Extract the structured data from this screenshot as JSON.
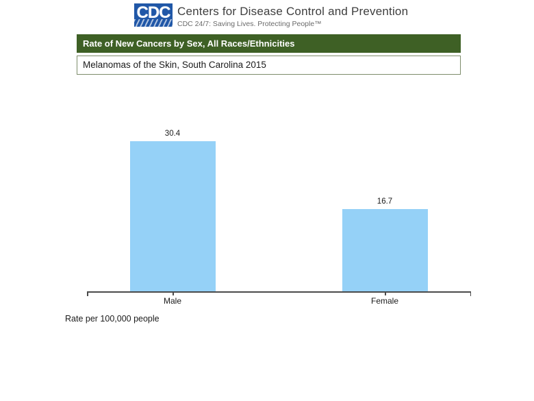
{
  "header": {
    "logo_text": "CDC",
    "org_name": "Centers for Disease Control and Prevention",
    "tagline": "CDC 24/7: Saving Lives. Protecting People™"
  },
  "title_bar": {
    "text": "Rate of New Cancers by Sex, All Races/Ethnicities"
  },
  "subtitle_box": {
    "text": "Melanomas of the Skin, South Carolina 2015"
  },
  "footnote": "Rate per 100,000 people",
  "colors": {
    "bar_fill": "#95d1f7",
    "title_bar_bg": "#3e6025",
    "logo_blue": "#2057a7",
    "axis": "#4a4a4a"
  },
  "chart_data": {
    "type": "bar",
    "categories": [
      "Male",
      "Female"
    ],
    "values": [
      30.4,
      16.7
    ],
    "value_labels": [
      "30.4",
      "16.7"
    ],
    "title": "Rate of New Cancers by Sex, All Races/Ethnicities",
    "subtitle": "Melanomas of the Skin, South Carolina 2015",
    "xlabel": "",
    "ylabel": "Rate per 100,000 people",
    "ylim": [
      0,
      34
    ],
    "grid": false,
    "legend": false
  }
}
